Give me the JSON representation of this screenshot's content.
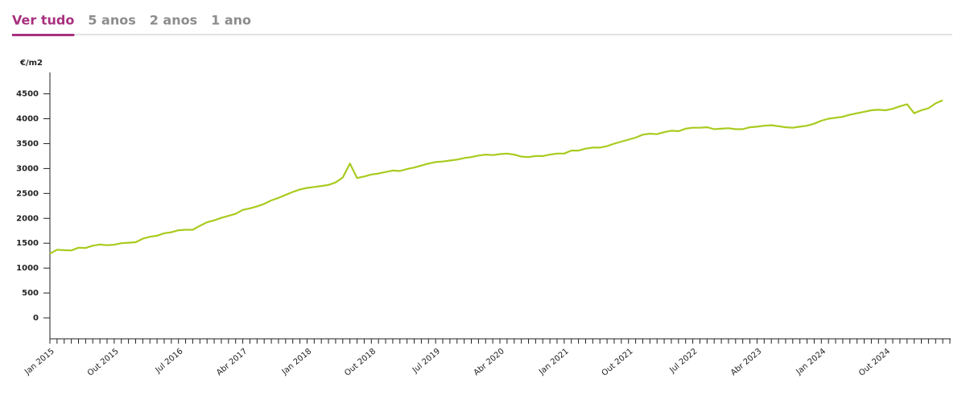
{
  "tabs": [
    "Ver tudo",
    "5 anos",
    "2 anos",
    "1 ano"
  ],
  "active_tab": 0,
  "chart_data": {
    "type": "line",
    "y_label": "€/m2",
    "color": "#a9cb1f",
    "categories": [
      "Jan 2015",
      null,
      null,
      null,
      null,
      null,
      null,
      null,
      null,
      "Out 2015",
      null,
      null,
      null,
      null,
      null,
      null,
      null,
      null,
      "Jul 2016",
      null,
      null,
      null,
      null,
      null,
      null,
      null,
      null,
      "Abr 2017",
      null,
      null,
      null,
      null,
      null,
      null,
      null,
      null,
      "Jan 2018",
      null,
      null,
      null,
      null,
      null,
      null,
      null,
      null,
      "Out 2018",
      null,
      null,
      null,
      null,
      null,
      null,
      null,
      null,
      "Jul 2019",
      null,
      null,
      null,
      null,
      null,
      null,
      null,
      null,
      "Abr 2020",
      null,
      null,
      null,
      null,
      null,
      null,
      null,
      null,
      "Jan 2021",
      null,
      null,
      null,
      null,
      null,
      null,
      null,
      null,
      "Out 2021",
      null,
      null,
      null,
      null,
      null,
      null,
      null,
      null,
      "Jul 2022",
      null,
      null,
      null,
      null,
      null,
      null,
      null,
      null,
      "Abr 2023",
      null,
      null,
      null,
      null,
      null,
      null,
      null,
      null,
      "Jan 2024",
      null,
      null,
      null,
      null,
      null,
      null,
      null,
      null,
      "Out 2024",
      null,
      null,
      null,
      null,
      null,
      null,
      null,
      null
    ],
    "values": [
      1290,
      1370,
      1360,
      1355,
      1410,
      1405,
      1450,
      1475,
      1460,
      1470,
      1500,
      1510,
      1520,
      1590,
      1630,
      1650,
      1700,
      1720,
      1760,
      1770,
      1770,
      1850,
      1920,
      1960,
      2010,
      2050,
      2090,
      2170,
      2200,
      2240,
      2290,
      2360,
      2410,
      2470,
      2530,
      2580,
      2610,
      2630,
      2650,
      2670,
      2720,
      2820,
      3100,
      2810,
      2840,
      2880,
      2900,
      2930,
      2960,
      2950,
      2990,
      3020,
      3060,
      3100,
      3130,
      3140,
      3160,
      3180,
      3210,
      3230,
      3260,
      3280,
      3270,
      3290,
      3300,
      3280,
      3240,
      3230,
      3250,
      3250,
      3280,
      3300,
      3300,
      3360,
      3360,
      3400,
      3420,
      3420,
      3450,
      3500,
      3540,
      3580,
      3620,
      3680,
      3700,
      3690,
      3730,
      3760,
      3750,
      3800,
      3820,
      3820,
      3830,
      3790,
      3800,
      3810,
      3790,
      3790,
      3830,
      3840,
      3860,
      3870,
      3850,
      3830,
      3820,
      3840,
      3860,
      3900,
      3960,
      4000,
      4020,
      4040,
      4080,
      4110,
      4140,
      4170,
      4180,
      4170,
      4200,
      4250,
      4290,
      4110,
      4170,
      4210,
      4310,
      4370
    ],
    "ylim": [
      -420,
      4930
    ],
    "yticks": [
      0,
      500,
      1000,
      1500,
      2000,
      2500,
      3000,
      3500,
      4000,
      4500
    ]
  }
}
